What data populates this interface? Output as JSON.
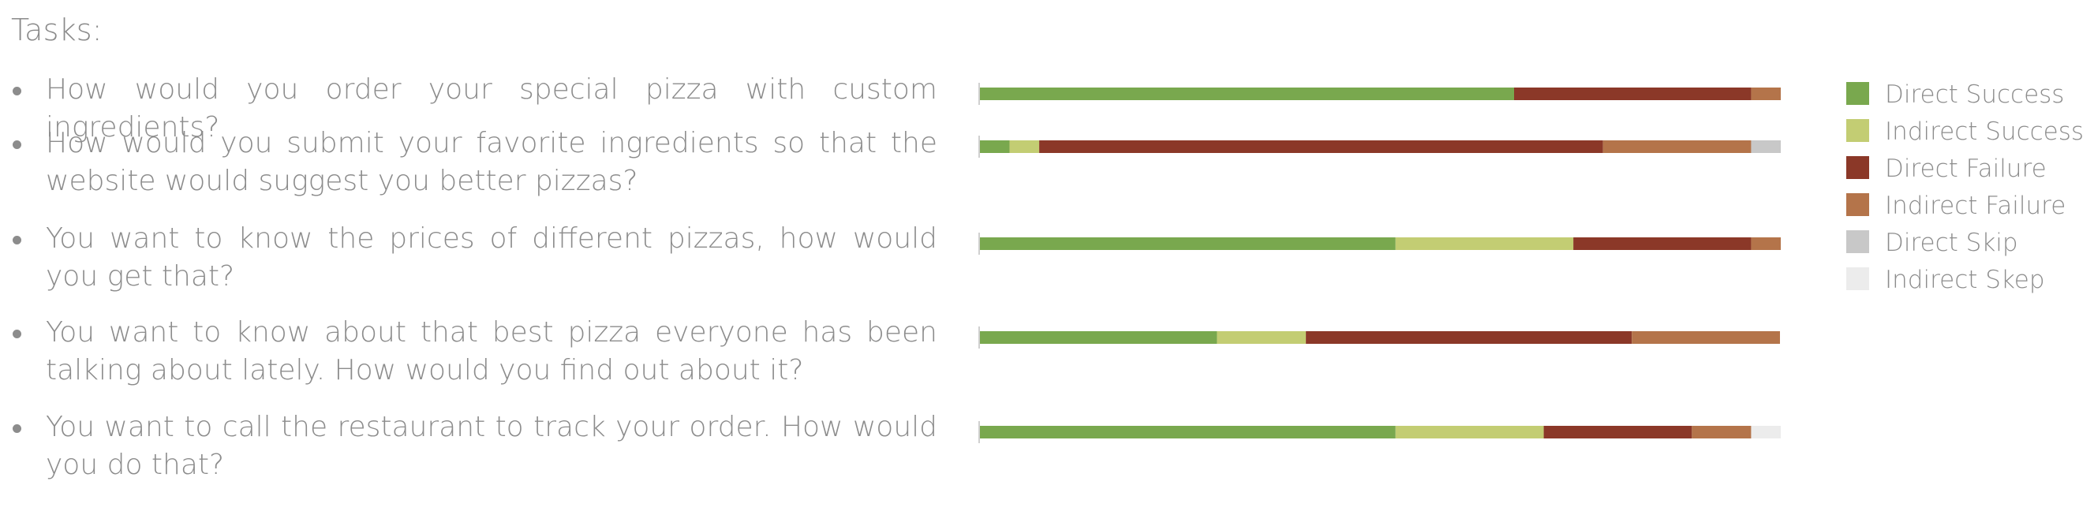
{
  "heading": "Tasks:",
  "tasks": [
    "How would you order your special pizza with custom ingredients?",
    "How would you submit your favorite ingredients so that the website would suggest you better pizzas?",
    "You want to know the prices of different pizzas, how would you get that?",
    "You want to know about that best pizza everyone has been talking about lately. How would you find out about it?",
    "You want to call the restaurant to track your order. How would you do that?"
  ],
  "legend": {
    "items": [
      {
        "label": "Direct Success",
        "color": "#79a84e"
      },
      {
        "label": "Indirect Success",
        "color": "#c3cd73"
      },
      {
        "label": "Direct Failure",
        "color": "#8b3828"
      },
      {
        "label": "Indirect Failure",
        "color": "#b4744a"
      },
      {
        "label": "Direct Skip",
        "color": "#c8c8c8"
      },
      {
        "label": "Indirect Skep",
        "color": "#ececec"
      }
    ]
  },
  "chart_data": {
    "type": "bar",
    "orientation": "horizontal",
    "stacked": true,
    "normalized_to": 100,
    "categories": [
      "How would you order your special pizza with custom ingredients?",
      "How would you submit your favorite ingredients so that the website would suggest you better pizzas?",
      "You want to know the prices of different pizzas, how would you get that?",
      "You want to know about that best pizza everyone has been talking about lately. How would you find out about it?",
      "You want to call the restaurant to track your order. How would you do that?"
    ],
    "series": [
      {
        "name": "Direct Success",
        "color": "#79a84e",
        "values": [
          66.7,
          3.7,
          51.9,
          29.6,
          51.9
        ]
      },
      {
        "name": "Indirect Success",
        "color": "#c3cd73",
        "values": [
          0,
          3.7,
          22.2,
          11.1,
          18.5
        ]
      },
      {
        "name": "Direct Failure",
        "color": "#8b3828",
        "values": [
          29.6,
          70.4,
          22.2,
          40.7,
          18.5
        ]
      },
      {
        "name": "Indirect Failure",
        "color": "#b4744a",
        "values": [
          3.7,
          18.5,
          3.7,
          18.5,
          7.4
        ]
      },
      {
        "name": "Direct Skip",
        "color": "#c8c8c8",
        "values": [
          0,
          3.7,
          0,
          0,
          0
        ]
      },
      {
        "name": "Indirect Skep",
        "color": "#ececec",
        "values": [
          0,
          0,
          0,
          0,
          3.7
        ]
      }
    ],
    "xlim": [
      0,
      100
    ],
    "grid": false,
    "legend_position": "right"
  }
}
